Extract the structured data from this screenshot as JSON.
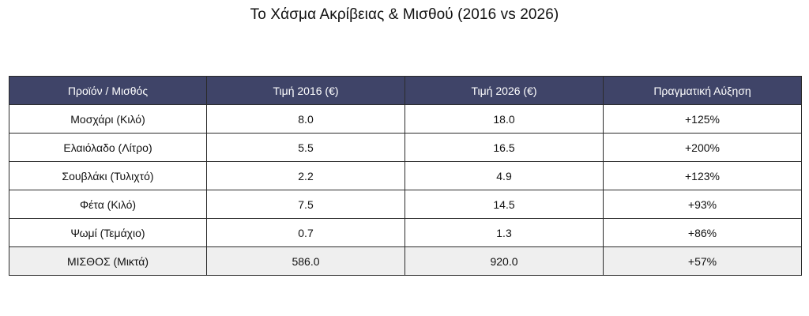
{
  "chart_data": {
    "type": "table",
    "title": "Το Χάσμα Ακρίβειας & Μισθού (2016 vs 2026)",
    "columns": [
      "Προϊόν / Μισθός",
      "Τιμή 2016 (€)",
      "Τιμή 2026 (€)",
      "Πραγματική Αύξηση"
    ],
    "rows": [
      [
        "Μοσχάρι (Κιλό)",
        "8.0",
        "18.0",
        "+125%"
      ],
      [
        "Ελαιόλαδο (Λίτρο)",
        "5.5",
        "16.5",
        "+200%"
      ],
      [
        "Σουβλάκι (Τυλιχτό)",
        "2.2",
        "4.9",
        "+123%"
      ],
      [
        "Φέτα (Κιλό)",
        "7.5",
        "14.5",
        "+93%"
      ],
      [
        "Ψωμί (Τεμάχιο)",
        "0.7",
        "1.3",
        "+86%"
      ],
      [
        "ΜΙΣΘΟΣ (Μικτά)",
        "586.0",
        "920.0",
        "+57%"
      ]
    ]
  },
  "colors": {
    "header_bg": "#3f4468",
    "header_text": "#ffffff",
    "total_row_bg": "#efefef",
    "border": "#2b2b2b"
  }
}
